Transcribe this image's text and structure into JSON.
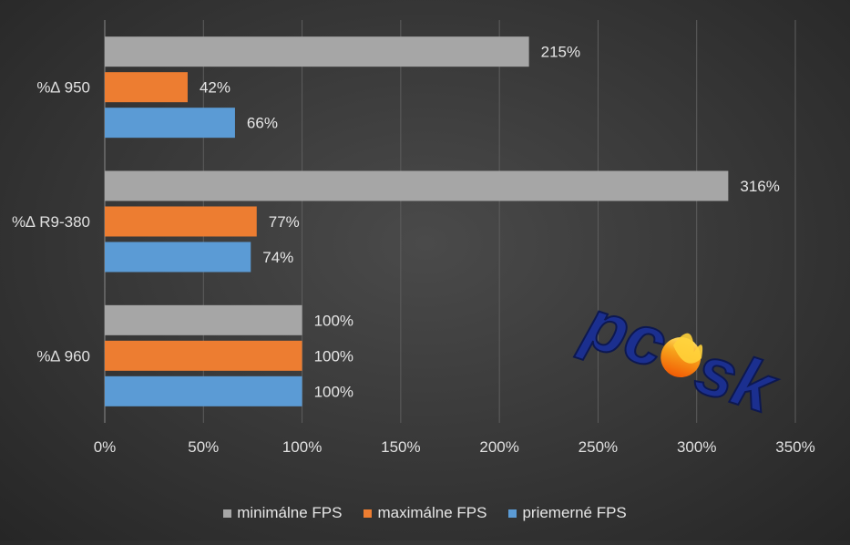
{
  "chart_data": {
    "type": "bar",
    "orientation": "horizontal",
    "categories": [
      "%∆ 950",
      "%∆ R9-380",
      "%∆ 960"
    ],
    "series": [
      {
        "name": "minimálne FPS",
        "color": "#a6a6a6",
        "values": [
          215,
          316,
          100
        ],
        "labels": [
          "215%",
          "316%",
          "100%"
        ]
      },
      {
        "name": "maximálne FPS",
        "color": "#ed7d31",
        "values": [
          42,
          77,
          100
        ],
        "labels": [
          "42%",
          "77%",
          "100%"
        ]
      },
      {
        "name": "priemerné FPS",
        "color": "#5b9bd5",
        "values": [
          66,
          74,
          100
        ],
        "labels": [
          "66%",
          "74%",
          "100%"
        ]
      }
    ],
    "xlim": [
      0,
      350
    ],
    "xticks": [
      0,
      50,
      100,
      150,
      200,
      250,
      300,
      350
    ],
    "xtick_labels": [
      "0%",
      "50%",
      "100%",
      "150%",
      "200%",
      "250%",
      "300%",
      "350%"
    ],
    "grid": true,
    "legend_position": "bottom",
    "title": "",
    "xlabel": "",
    "ylabel": ""
  },
  "watermark": {
    "text": "pc sk"
  }
}
